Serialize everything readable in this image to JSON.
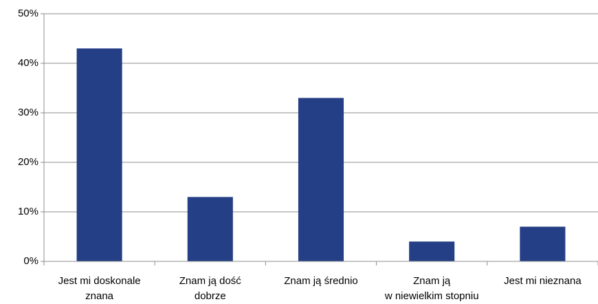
{
  "chart_data": {
    "type": "bar",
    "categories": [
      "Jest mi doskonale\nznana",
      "Znam ją dość\ndobrze",
      "Znam ją średnio",
      "Znam ją\nw niewielkim stopniu",
      "Jest mi nieznana"
    ],
    "values": [
      43,
      13,
      33,
      4,
      7
    ],
    "color": "#243f85",
    "ylim": [
      0,
      50
    ],
    "yticks": [
      {
        "value": 0,
        "label": "0%"
      },
      {
        "value": 10,
        "label": "10%"
      },
      {
        "value": 20,
        "label": "20%"
      },
      {
        "value": 30,
        "label": "30%"
      },
      {
        "value": 40,
        "label": "40%"
      },
      {
        "value": 50,
        "label": "50%"
      }
    ],
    "grid": true
  }
}
